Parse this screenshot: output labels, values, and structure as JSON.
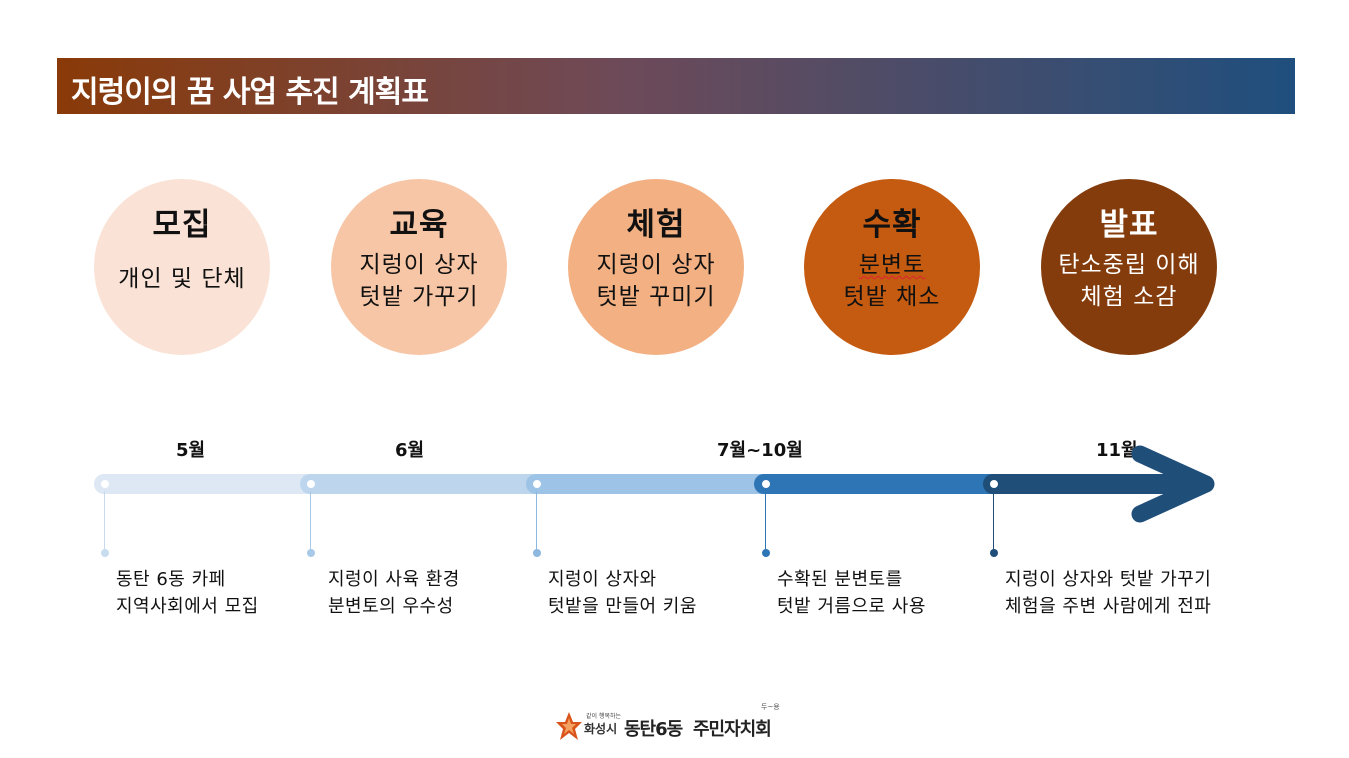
{
  "header": {
    "title": "지렁이의 꿈 사업 추진 계획표"
  },
  "stages": [
    {
      "title": "모집",
      "desc_lines": [
        "개인 및 단체"
      ]
    },
    {
      "title": "교육",
      "desc_lines": [
        "지렁이 상자",
        "텃밭 가꾸기"
      ]
    },
    {
      "title": "체험",
      "desc_lines": [
        "지렁이 상자",
        "텃밭 꾸미기"
      ]
    },
    {
      "title": "수확",
      "desc_lines": [
        "분변토",
        "텃밭 채소"
      ]
    },
    {
      "title": "발표",
      "desc_lines": [
        "탄소중립 이해",
        "체험 소감"
      ]
    }
  ],
  "timeline": {
    "months": [
      "5월",
      "6월",
      "7월~10월",
      "11월"
    ],
    "notes": [
      {
        "line1": "동탄 6동 카페",
        "line2": "지역사회에서 모집"
      },
      {
        "line1": "지렁이 사육 환경",
        "line2": "분변토의 우수성"
      },
      {
        "line1": "지렁이 상자와",
        "line2": "텃밭을 만들어 키움"
      },
      {
        "line1": "수확된 분변토를",
        "line2": "텃밭 거름으로 사용"
      },
      {
        "line1": "지렁이 상자와 텃밭 가꾸기",
        "line2": "체험을 주변 사람에게 전파"
      }
    ]
  },
  "footer": {
    "city_small": "같이 행복하는",
    "city_name": "화성시",
    "org_part1": "동탄6동",
    "org_part2": "주민자치회",
    "tag": "두~용"
  },
  "colors": {
    "stage_fills": [
      "#fae3d6",
      "#f7c6a6",
      "#f2b083",
      "#c55a11",
      "#843c0c"
    ],
    "timeline_segments": [
      "#dde8f4",
      "#bdd6ee",
      "#9dc3e6",
      "#2e75b6",
      "#1f4e79"
    ]
  },
  "icons": [
    "hwaseong-logo-icon",
    "timeline-arrow-icon"
  ]
}
